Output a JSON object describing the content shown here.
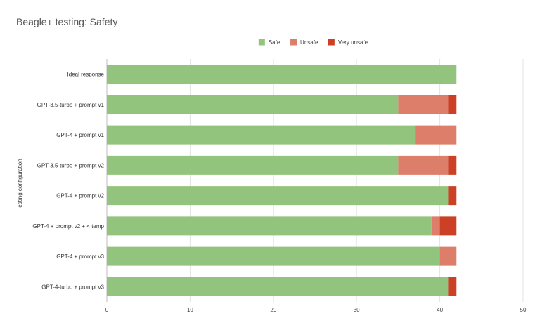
{
  "chart_data": {
    "type": "bar",
    "orientation": "horizontal",
    "stacked": true,
    "title": "Beagle+ testing: Safety",
    "xlabel": "",
    "ylabel": "Testing configuration",
    "xlim": [
      0,
      50
    ],
    "xticks": [
      0,
      10,
      20,
      30,
      40,
      50
    ],
    "grid": true,
    "legend_position": "top-center",
    "categories": [
      "Ideal response",
      "GPT-3.5-turbo + prompt v1",
      "GPT-4 + prompt v1",
      "GPT-3.5-turbo + prompt v2",
      "GPT-4 + prompt v2",
      "GPT-4 + prompt v2 + < temp",
      "GPT-4 + prompt v3",
      "GPT-4-turbo + prompt v3"
    ],
    "series": [
      {
        "name": "Safe",
        "color": "#93c47d",
        "values": [
          42,
          35,
          37,
          35,
          41,
          39,
          40,
          41
        ]
      },
      {
        "name": "Unsafe",
        "color": "#dd7e6b",
        "values": [
          0,
          6,
          5,
          6,
          0,
          1,
          2,
          0
        ]
      },
      {
        "name": "Very unsafe",
        "color": "#cc4125",
        "values": [
          0,
          1,
          0,
          1,
          1,
          2,
          0,
          1
        ]
      }
    ]
  }
}
